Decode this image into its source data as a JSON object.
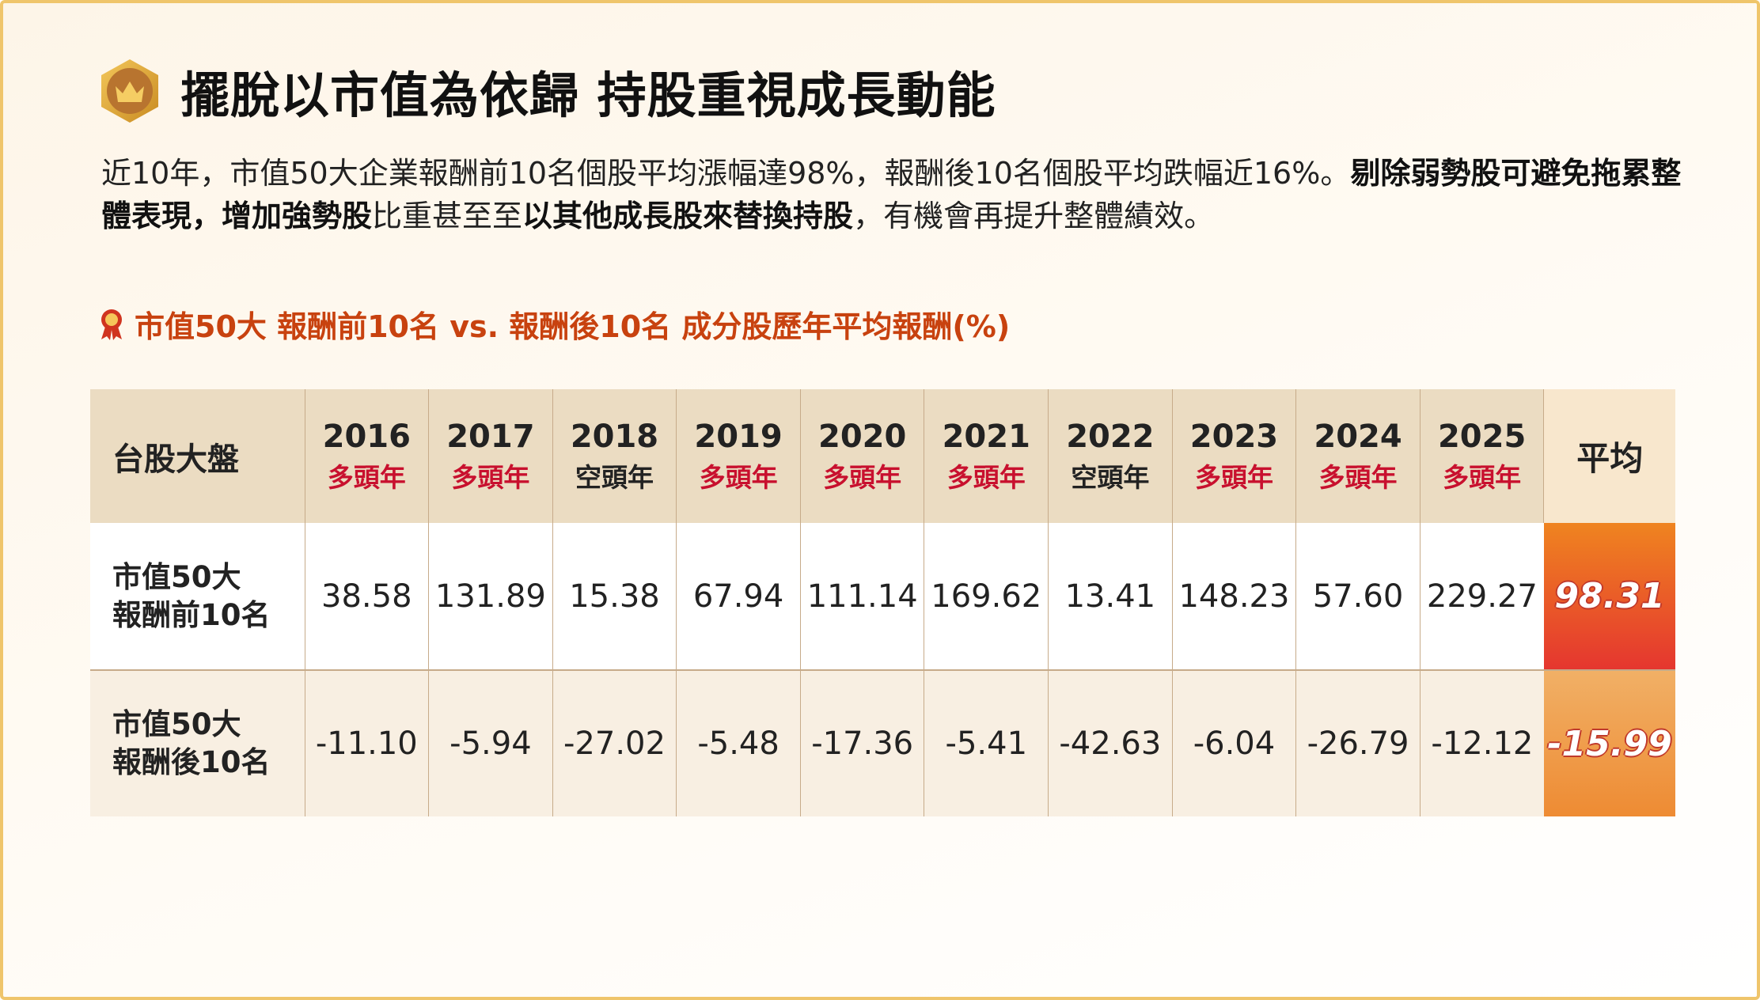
{
  "title": "擺脫以市值為依歸  持股重視成長動能",
  "desc": {
    "p1": "近10年，市值50大企業報酬前10名個股平均漲幅達98%，報酬後10名個股平均跌幅近16%。",
    "b1": "剔除弱勢股可避免拖累整體表現，",
    "b2": "增加強勢股",
    "p2": "比重甚至至",
    "b3": "以其他成長股來替換持股",
    "p3": "，有機會再提升整體績效。"
  },
  "subtitle": "市值50大 報酬前10名 vs. 報酬後10名 成分股歷年平均報酬(%)",
  "table": {
    "corner": "台股大盤",
    "avg_header": "平均",
    "years": [
      {
        "year": "2016",
        "market": "多頭年",
        "bull": true
      },
      {
        "year": "2017",
        "market": "多頭年",
        "bull": true
      },
      {
        "year": "2018",
        "market": "空頭年",
        "bull": false
      },
      {
        "year": "2019",
        "market": "多頭年",
        "bull": true
      },
      {
        "year": "2020",
        "market": "多頭年",
        "bull": true
      },
      {
        "year": "2021",
        "market": "多頭年",
        "bull": true
      },
      {
        "year": "2022",
        "market": "空頭年",
        "bull": false
      },
      {
        "year": "2023",
        "market": "多頭年",
        "bull": true
      },
      {
        "year": "2024",
        "market": "多頭年",
        "bull": true
      },
      {
        "year": "2025",
        "market": "多頭年",
        "bull": true
      }
    ],
    "rows": [
      {
        "label1": "市值50大",
        "label2": "報酬前10名",
        "values": [
          "38.58",
          "131.89",
          "15.38",
          "67.94",
          "111.14",
          "169.62",
          "13.41",
          "148.23",
          "57.60",
          "229.27"
        ],
        "avg": "98.31"
      },
      {
        "label1": "市值50大",
        "label2": "報酬後10名",
        "values": [
          "-11.10",
          "-5.94",
          "-27.02",
          "-5.48",
          "-17.36",
          "-5.41",
          "-42.63",
          "-6.04",
          "-26.79",
          "-12.12"
        ],
        "avg": "-15.99"
      }
    ]
  }
}
